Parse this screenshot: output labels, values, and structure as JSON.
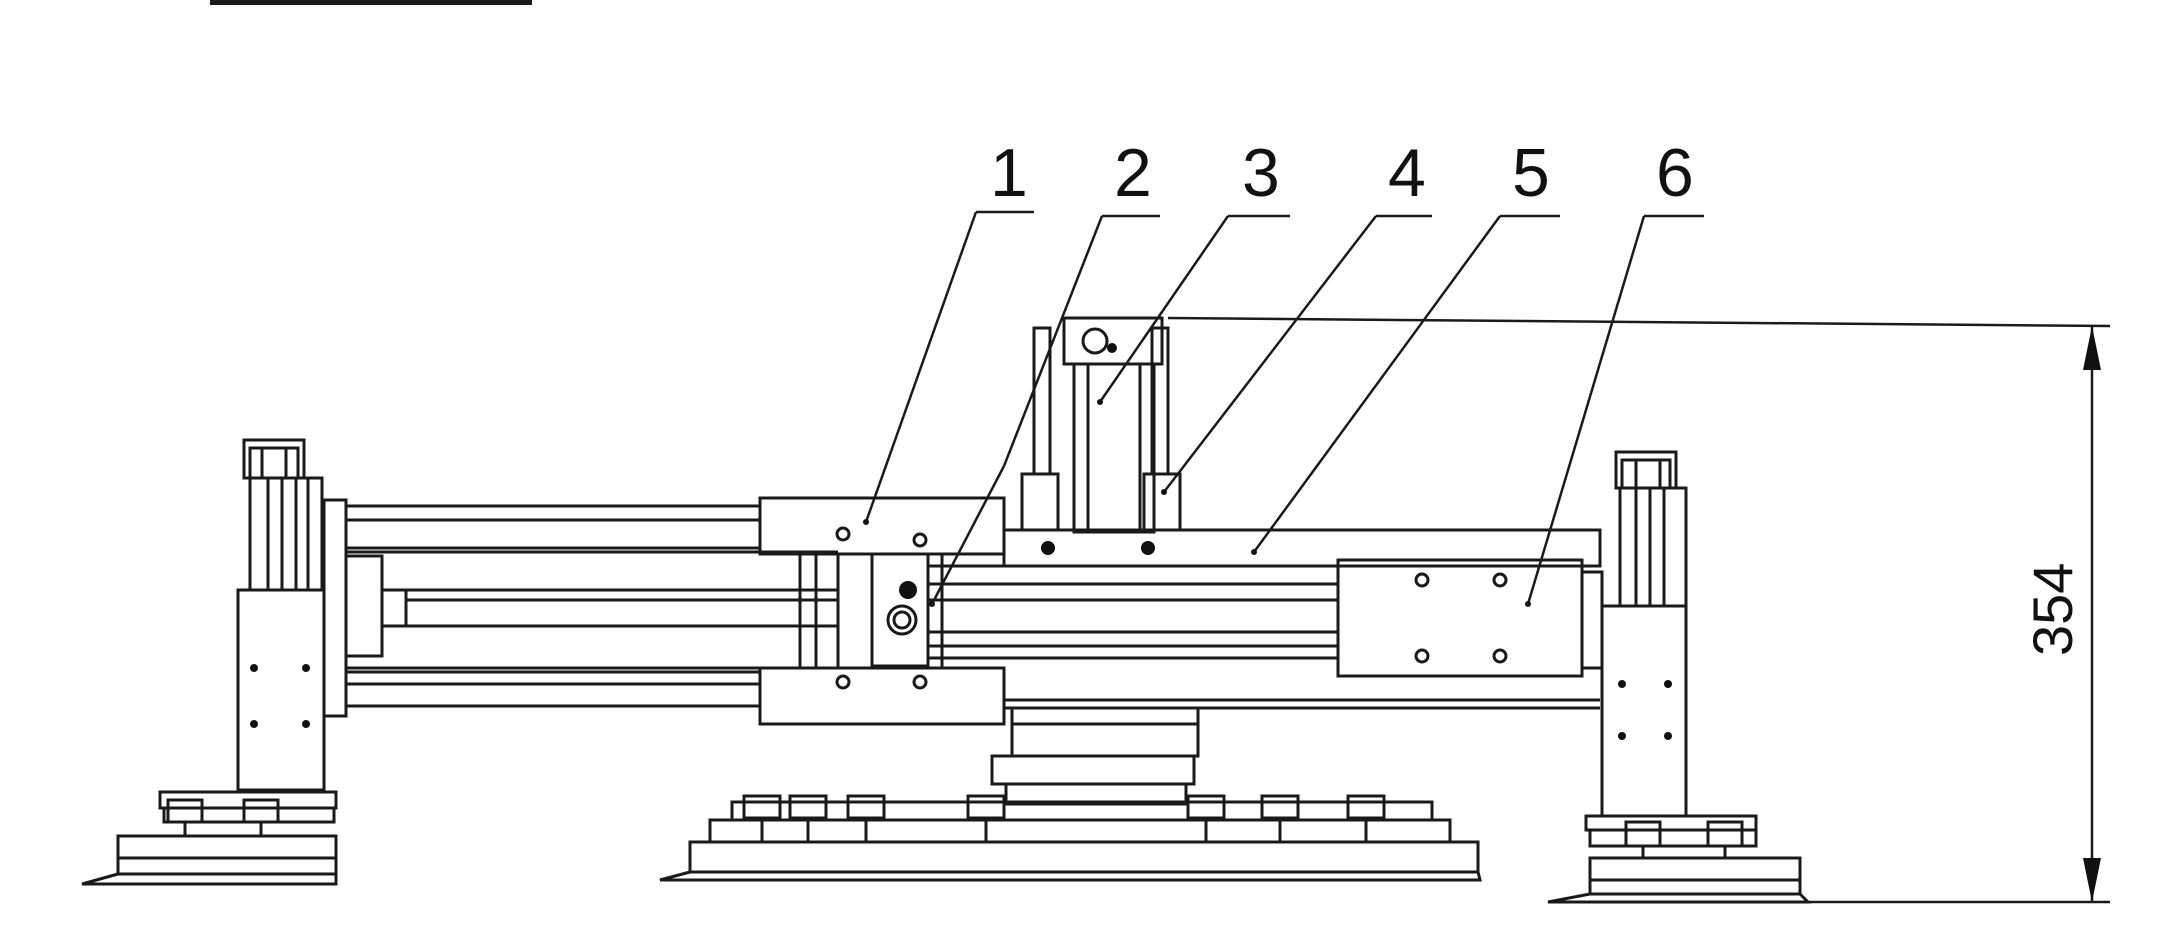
{
  "callouts": [
    {
      "label": "1"
    },
    {
      "label": "2"
    },
    {
      "label": "3"
    },
    {
      "label": "4"
    },
    {
      "label": "5"
    },
    {
      "label": "6"
    }
  ],
  "dimension": {
    "value": "354"
  }
}
